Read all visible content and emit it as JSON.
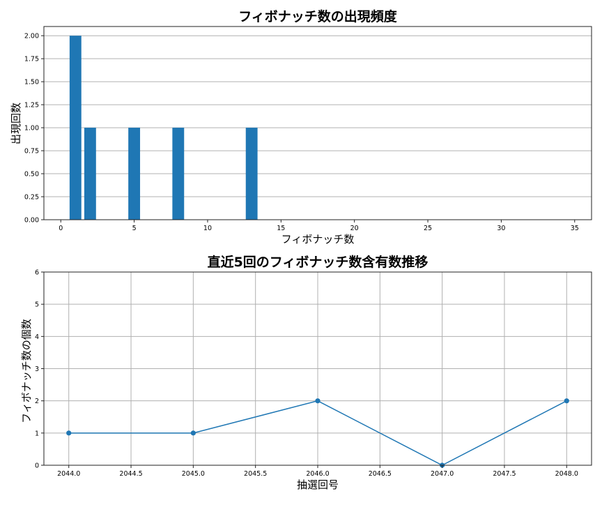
{
  "chart_data": [
    {
      "type": "bar",
      "title": "フィボナッチ数の出現頻度",
      "xlabel": "フィボナッチ数",
      "ylabel": "出現回数",
      "categories": [
        1,
        2,
        5,
        8,
        13
      ],
      "values": [
        2,
        1,
        1,
        1,
        1
      ],
      "bar_width": 0.8,
      "color": "#1f77b4",
      "xlim": [
        -1.15,
        36.15
      ],
      "ylim": [
        0,
        2.1
      ],
      "xticks": [
        "0",
        "5",
        "10",
        "15",
        "20",
        "25",
        "30",
        "35"
      ],
      "yticks": [
        "0.00",
        "0.25",
        "0.50",
        "0.75",
        "1.00",
        "1.25",
        "1.50",
        "1.75",
        "2.00"
      ],
      "grid": "y"
    },
    {
      "type": "line",
      "title": "直近5回のフィボナッチ数含有数推移",
      "xlabel": "抽選回号",
      "ylabel": "フィボナッチ数の個数",
      "x": [
        2044,
        2045,
        2046,
        2047,
        2048
      ],
      "values": [
        1,
        1,
        2,
        0,
        2
      ],
      "marker": "o",
      "color": "#1f77b4",
      "xlim": [
        2043.8,
        2048.2
      ],
      "ylim": [
        0,
        6
      ],
      "xticks": [
        "2044.0",
        "2044.5",
        "2045.0",
        "2045.5",
        "2046.0",
        "2046.5",
        "2047.0",
        "2047.5",
        "2048.0"
      ],
      "yticks": [
        "0",
        "1",
        "2",
        "3",
        "4",
        "5",
        "6"
      ],
      "grid": "both"
    }
  ]
}
